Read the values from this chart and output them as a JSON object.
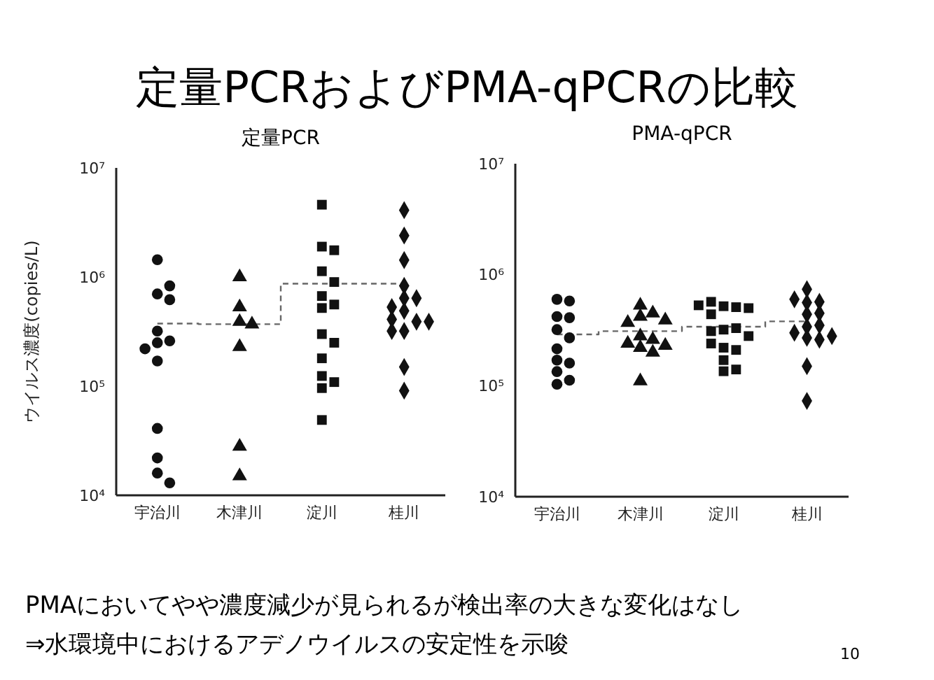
{
  "chart_data": [
    {
      "type": "other",
      "title": "定量PCRおよびPMA-qPCRの比較"
    },
    {
      "type": "scatter",
      "title": "定量PCR",
      "ylabel": "ウイルス濃度(copies/L)",
      "log": "y",
      "ylim": [
        10000,
        10000000
      ],
      "yticks": [
        {
          "value": 10000,
          "label": "10⁴"
        },
        {
          "value": 100000,
          "label": "10⁵"
        },
        {
          "value": 1000000,
          "label": "10⁶"
        },
        {
          "value": 10000000,
          "label": "10⁷"
        }
      ],
      "categories": [
        "宇治川",
        "木津川",
        "淀川",
        "桂川"
      ],
      "series": [
        {
          "color": "#111111",
          "marker": "circle",
          "x": [
            "宇治川",
            "宇治川",
            "宇治川",
            "宇治川",
            "宇治川",
            "宇治川",
            "宇治川",
            "宇治川",
            "宇治川",
            "宇治川",
            "宇治川",
            "宇治川",
            "宇治川"
          ],
          "values": [
            1440000,
            700000,
            620000,
            830000,
            320000,
            260000,
            250000,
            220000,
            170000,
            41000,
            22000,
            16000,
            13000
          ]
        },
        {
          "color": "#111111",
          "marker": "triangle",
          "x": [
            "木津川",
            "木津川",
            "木津川",
            "木津川",
            "木津川",
            "木津川",
            "木津川"
          ],
          "values": [
            1000000,
            530000,
            390000,
            370000,
            230000,
            28000,
            15000
          ]
        },
        {
          "color": "#111111",
          "marker": "square",
          "x": [
            "淀川",
            "淀川",
            "淀川",
            "淀川",
            "淀川",
            "淀川",
            "淀川",
            "淀川",
            "淀川",
            "淀川",
            "淀川",
            "淀川",
            "淀川",
            "淀川",
            "淀川"
          ],
          "values": [
            4600000,
            1900000,
            1760000,
            1130000,
            900000,
            670000,
            520000,
            560000,
            300000,
            250000,
            180000,
            124000,
            109000,
            96000,
            49000
          ]
        },
        {
          "color": "#111111",
          "marker": "diamond",
          "x": [
            "桂川",
            "桂川",
            "桂川",
            "桂川",
            "桂川",
            "桂川",
            "桂川",
            "桂川",
            "桂川",
            "桂川",
            "桂川",
            "桂川",
            "桂川",
            "桂川",
            "桂川"
          ],
          "values": [
            4100000,
            2400000,
            1430000,
            830000,
            640000,
            640000,
            530000,
            490000,
            390000,
            410000,
            390000,
            320000,
            320000,
            150000,
            91000
          ]
        },
        {
          "type": "step",
          "color": "#666666",
          "line_style": "dashed",
          "marker": "none",
          "values": [
            375000,
            370000,
            870000,
            870000
          ]
        }
      ]
    },
    {
      "type": "scatter",
      "title": "PMA-qPCR",
      "log": "y",
      "ylim": [
        10000,
        10000000
      ],
      "yticks": [
        {
          "value": 10000,
          "label": "10⁴"
        },
        {
          "value": 100000,
          "label": "10⁵"
        },
        {
          "value": 1000000,
          "label": "10⁶"
        },
        {
          "value": 10000000,
          "label": "10⁷"
        }
      ],
      "categories": [
        "宇治川",
        "木津川",
        "淀川",
        "桂川"
      ],
      "series": [
        {
          "color": "#111111",
          "marker": "circle",
          "x": [
            "宇治川",
            "宇治川",
            "宇治川",
            "宇治川",
            "宇治川",
            "宇治川",
            "宇治川",
            "宇治川",
            "宇治川",
            "宇治川",
            "宇治川",
            "宇治川"
          ],
          "values": [
            600000,
            580000,
            420000,
            410000,
            320000,
            270000,
            215000,
            170000,
            160000,
            134000,
            112000,
            103000
          ]
        },
        {
          "color": "#111111",
          "marker": "triangle",
          "x": [
            "木津川",
            "木津川",
            "木津川",
            "木津川",
            "木津川",
            "木津川",
            "木津川",
            "木津川",
            "木津川",
            "木津川",
            "木津川",
            "木津川"
          ],
          "values": [
            530000,
            450000,
            420000,
            370000,
            390000,
            280000,
            260000,
            240000,
            220000,
            230000,
            200000,
            110000
          ]
        },
        {
          "color": "#111111",
          "marker": "square",
          "x": [
            "淀川",
            "淀川",
            "淀川",
            "淀川",
            "淀川",
            "淀川",
            "淀川",
            "淀川",
            "淀川",
            "淀川",
            "淀川",
            "淀川",
            "淀川",
            "淀川",
            "淀川",
            "淀川"
          ],
          "values": [
            520000,
            510000,
            570000,
            500000,
            530000,
            440000,
            320000,
            330000,
            310000,
            280000,
            220000,
            210000,
            240000,
            170000,
            140000,
            135000
          ]
        },
        {
          "color": "#111111",
          "marker": "diamond",
          "x": [
            "桂川",
            "桂川",
            "桂川",
            "桂川",
            "桂川",
            "桂川",
            "桂川",
            "桂川",
            "桂川",
            "桂川",
            "桂川",
            "桂川",
            "桂川",
            "桂川"
          ],
          "values": [
            740000,
            560000,
            570000,
            600000,
            440000,
            450000,
            350000,
            340000,
            300000,
            270000,
            260000,
            280000,
            150000,
            73000
          ]
        },
        {
          "type": "step",
          "color": "#666666",
          "line_style": "dashed",
          "marker": "none",
          "values": [
            290000,
            310000,
            340000,
            380000
          ]
        }
      ]
    },
    {
      "type": "other",
      "annotations": [
        "PMAにおいてやや濃度減少が見られるが検出率の大きな変化はなし",
        "⇒水環境中におけるアデノウイルスの安定性を示唆",
        "10"
      ]
    }
  ]
}
